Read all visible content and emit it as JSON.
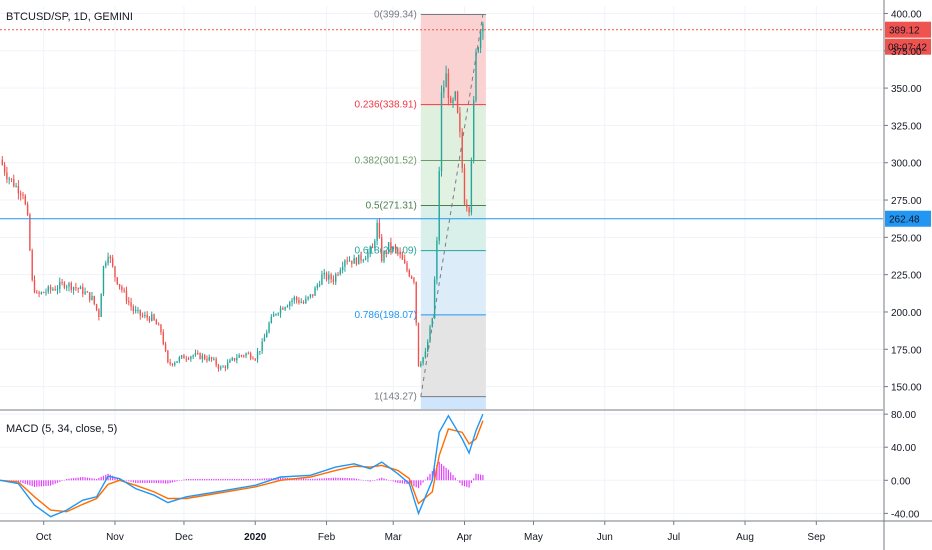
{
  "chart_data": {
    "type": "candlestick",
    "symbol_title": "BTCUSD/SP, 1D, GEMINI",
    "ylim": [
      135,
      405
    ],
    "y_ticks": [
      400.0,
      375.0,
      350.0,
      325.0,
      300.0,
      275.0,
      250.0,
      225.0,
      200.0,
      175.0,
      150.0
    ],
    "y_tick_labels": [
      "400.00",
      "375.00",
      "350.00",
      "325.00",
      "300.00",
      "275.00",
      "250.00",
      "225.00",
      "200.00",
      "175.00",
      "150.00"
    ],
    "x_labels": [
      "Oct",
      "Nov",
      "Dec",
      "2020",
      "Feb",
      "Mar",
      "Apr",
      "May",
      "Jun",
      "Jul",
      "Aug",
      "Sep"
    ],
    "x_date_range": [
      "2019-09-12",
      "2020-09-30"
    ],
    "x_label_dates": [
      "2019-10-01",
      "2019-11-01",
      "2019-12-01",
      "2020-01-01",
      "2020-02-01",
      "2020-03-01",
      "2020-04-01",
      "2020-05-01",
      "2020-06-01",
      "2020-07-01",
      "2020-08-01",
      "2020-09-01"
    ],
    "price_path": [
      [
        "2019-09-12",
        302
      ],
      [
        "2019-09-15",
        292
      ],
      [
        "2019-09-19",
        284
      ],
      [
        "2019-09-22",
        280
      ],
      [
        "2019-09-24",
        262
      ],
      [
        "2019-09-26",
        220
      ],
      [
        "2019-09-28",
        211
      ],
      [
        "2019-10-02",
        214
      ],
      [
        "2019-10-06",
        216
      ],
      [
        "2019-10-10",
        219
      ],
      [
        "2019-10-14",
        217
      ],
      [
        "2019-10-18",
        214
      ],
      [
        "2019-10-22",
        209
      ],
      [
        "2019-10-25",
        198
      ],
      [
        "2019-10-27",
        230
      ],
      [
        "2019-10-29",
        240
      ],
      [
        "2019-11-01",
        224
      ],
      [
        "2019-11-05",
        212
      ],
      [
        "2019-11-09",
        201
      ],
      [
        "2019-11-13",
        197
      ],
      [
        "2019-11-17",
        196
      ],
      [
        "2019-11-21",
        187
      ],
      [
        "2019-11-24",
        165
      ],
      [
        "2019-11-27",
        167
      ],
      [
        "2019-12-01",
        170
      ],
      [
        "2019-12-05",
        171
      ],
      [
        "2019-12-09",
        170
      ],
      [
        "2019-12-13",
        168
      ],
      [
        "2019-12-17",
        162
      ],
      [
        "2019-12-20",
        165
      ],
      [
        "2019-12-24",
        170
      ],
      [
        "2019-12-28",
        172
      ],
      [
        "2020-01-01",
        170
      ],
      [
        "2020-01-04",
        178
      ],
      [
        "2020-01-07",
        192
      ],
      [
        "2020-01-10",
        200
      ],
      [
        "2020-01-14",
        205
      ],
      [
        "2020-01-18",
        209
      ],
      [
        "2020-01-22",
        206
      ],
      [
        "2020-01-26",
        212
      ],
      [
        "2020-01-30",
        224
      ],
      [
        "2020-02-04",
        222
      ],
      [
        "2020-02-09",
        236
      ],
      [
        "2020-02-13",
        234
      ],
      [
        "2020-02-17",
        237
      ],
      [
        "2020-02-21",
        242
      ],
      [
        "2020-02-23",
        258
      ],
      [
        "2020-02-25",
        236
      ],
      [
        "2020-02-28",
        244
      ],
      [
        "2020-03-03",
        240
      ],
      [
        "2020-03-05",
        234
      ],
      [
        "2020-03-07",
        228
      ],
      [
        "2020-03-10",
        222
      ],
      [
        "2020-03-12",
        165
      ],
      [
        "2020-03-15",
        172
      ],
      [
        "2020-03-18",
        196
      ],
      [
        "2020-03-20",
        246
      ],
      [
        "2020-03-22",
        345
      ],
      [
        "2020-03-24",
        358
      ],
      [
        "2020-03-26",
        336
      ],
      [
        "2020-03-28",
        344
      ],
      [
        "2020-03-30",
        318
      ],
      [
        "2020-04-01",
        275
      ],
      [
        "2020-04-03",
        270
      ],
      [
        "2020-04-04",
        305
      ],
      [
        "2020-04-06",
        372
      ],
      [
        "2020-04-08",
        389
      ],
      [
        "2020-04-09",
        398
      ]
    ],
    "horizontal_lines": [
      {
        "value": 262.48,
        "label": "262.48",
        "color": "#2196f3",
        "style": "solid"
      },
      {
        "value": 389.12,
        "label": "389.12",
        "color": "#ef5350",
        "style": "dotted"
      }
    ],
    "countdown_label": "08:07:42",
    "fibonacci": {
      "start_date": "2020-03-13",
      "end_date": "2020-04-09",
      "levels": [
        {
          "ratio": 0,
          "value": 399.34,
          "label": "0(399.34)",
          "color": "#787b86",
          "fill": "#fad2d2"
        },
        {
          "ratio": 0.236,
          "value": 338.91,
          "label": "0.236(338.91)",
          "color": "#f23645",
          "fill": "#dff0df"
        },
        {
          "ratio": 0.382,
          "value": 301.52,
          "label": "0.382(301.52)",
          "color": "#6c9a6c",
          "fill": "#e2f2e2"
        },
        {
          "ratio": 0.5,
          "value": 271.31,
          "label": "0.5(271.31)",
          "color": "#4d7d4d",
          "fill": "#d9f0ea"
        },
        {
          "ratio": 0.618,
          "value": 241.09,
          "label": "0.618(241.09)",
          "color": "#26a69a",
          "fill": "#dcecf9"
        },
        {
          "ratio": 0.786,
          "value": 198.07,
          "label": "0.786(198.07)",
          "color": "#2196f3",
          "fill": "#e4e4e4"
        },
        {
          "ratio": 1,
          "value": 143.27,
          "label": "1(143.27)",
          "color": "#787b86",
          "fill": "#cfe5fb"
        }
      ]
    },
    "macd": {
      "title": "MACD (5, 34, close, 5)",
      "ylim": [
        -48,
        85
      ],
      "y_ticks": [
        80,
        40,
        0,
        -40
      ],
      "y_tick_labels": [
        "80.00",
        "40.00",
        "0.00",
        "-40.00"
      ],
      "macd_line_color": "#2196f3",
      "signal_line_color": "#ff6d00",
      "histogram_color": "#e040fb",
      "macd_path": [
        [
          "2019-09-12",
          0
        ],
        [
          "2019-09-20",
          -4
        ],
        [
          "2019-09-27",
          -30
        ],
        [
          "2019-10-04",
          -44
        ],
        [
          "2019-10-11",
          -36
        ],
        [
          "2019-10-18",
          -24
        ],
        [
          "2019-10-24",
          -20
        ],
        [
          "2019-10-29",
          5
        ],
        [
          "2019-11-03",
          2
        ],
        [
          "2019-11-10",
          -10
        ],
        [
          "2019-11-18",
          -18
        ],
        [
          "2019-11-24",
          -27
        ],
        [
          "2019-12-02",
          -20
        ],
        [
          "2019-12-15",
          -14
        ],
        [
          "2020-01-01",
          -6
        ],
        [
          "2020-01-12",
          4
        ],
        [
          "2020-01-25",
          6
        ],
        [
          "2020-02-05",
          16
        ],
        [
          "2020-02-13",
          20
        ],
        [
          "2020-02-20",
          14
        ],
        [
          "2020-02-25",
          22
        ],
        [
          "2020-03-03",
          8
        ],
        [
          "2020-03-08",
          -4
        ],
        [
          "2020-03-12",
          -40
        ],
        [
          "2020-03-18",
          0
        ],
        [
          "2020-03-21",
          58
        ],
        [
          "2020-03-25",
          78
        ],
        [
          "2020-03-31",
          50
        ],
        [
          "2020-04-03",
          33
        ],
        [
          "2020-04-06",
          60
        ],
        [
          "2020-04-09",
          80
        ]
      ],
      "signal_path": [
        [
          "2019-09-12",
          0
        ],
        [
          "2019-09-20",
          -2
        ],
        [
          "2019-09-27",
          -20
        ],
        [
          "2019-10-04",
          -36
        ],
        [
          "2019-10-11",
          -38
        ],
        [
          "2019-10-18",
          -29
        ],
        [
          "2019-10-24",
          -22
        ],
        [
          "2019-10-29",
          -5
        ],
        [
          "2019-11-03",
          0
        ],
        [
          "2019-11-10",
          -6
        ],
        [
          "2019-11-18",
          -14
        ],
        [
          "2019-11-24",
          -22
        ],
        [
          "2019-12-02",
          -22
        ],
        [
          "2019-12-15",
          -16
        ],
        [
          "2020-01-01",
          -8
        ],
        [
          "2020-01-12",
          0
        ],
        [
          "2020-01-25",
          4
        ],
        [
          "2020-02-05",
          12
        ],
        [
          "2020-02-13",
          17
        ],
        [
          "2020-02-20",
          16
        ],
        [
          "2020-02-25",
          18
        ],
        [
          "2020-03-03",
          12
        ],
        [
          "2020-03-08",
          2
        ],
        [
          "2020-03-12",
          -28
        ],
        [
          "2020-03-18",
          -14
        ],
        [
          "2020-03-21",
          30
        ],
        [
          "2020-03-25",
          62
        ],
        [
          "2020-03-31",
          58
        ],
        [
          "2020-04-03",
          44
        ],
        [
          "2020-04-06",
          50
        ],
        [
          "2020-04-09",
          72
        ]
      ],
      "histogram_visible_peaks": [
        [
          "2019-10-28",
          12
        ],
        [
          "2020-03-24",
          16
        ],
        [
          "2020-04-02",
          -14
        ],
        [
          "2020-04-08",
          13
        ]
      ]
    },
    "grid": true,
    "colors": {
      "up": "#26a69a",
      "down": "#ef5350",
      "candle_text": "#131722",
      "axis_text": "#131722",
      "grid": "#f0f3fa",
      "countdown_bg": "#ef5350"
    }
  }
}
